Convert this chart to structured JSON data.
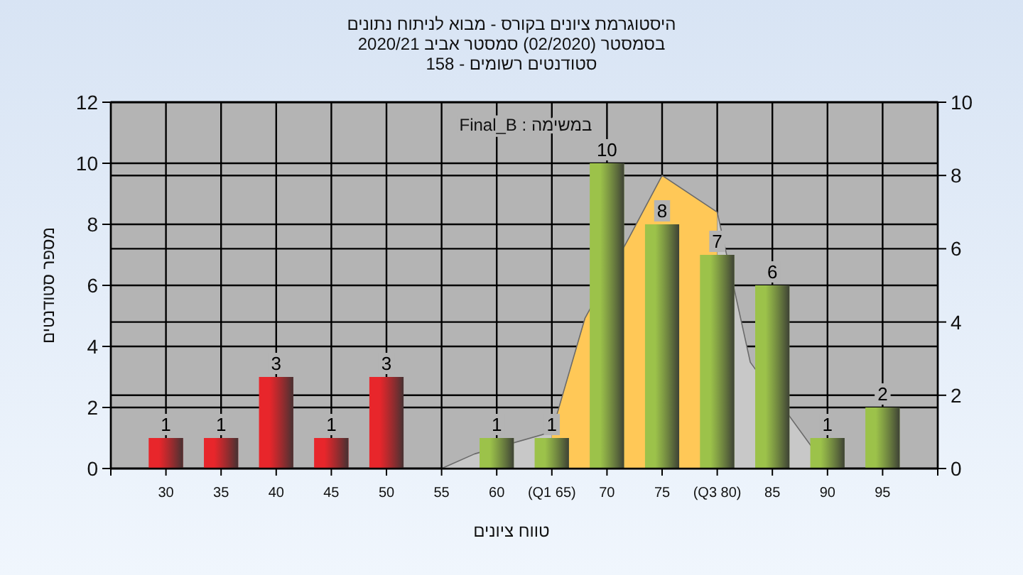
{
  "chart_data": {
    "type": "bar",
    "title": "היסטוגרמת ציונים בקורס - מבוא לניתוח נתונים",
    "subtitle": "בסמסטר  (02/2020)  סמסטר אביב 2020/21",
    "xlabel": "טווח ציונים",
    "ylabel": "מספר סטודנטים",
    "annotations": [
      "סטודנטים רשומים - 158",
      "במשימה : Final_B"
    ],
    "xlim": [
      25,
      100
    ],
    "xticks": [
      {
        "value": 25,
        "label": null
      },
      30,
      35,
      40,
      45,
      50,
      55,
      60,
      {
        "value": 65,
        "label": "(Q1 65)"
      },
      70,
      75,
      {
        "value": 80,
        "label": "(Q3 80)"
      },
      85,
      90,
      95,
      {
        "value": 100,
        "label": null
      }
    ],
    "ylim": [
      0,
      12
    ],
    "yticks": [
      0,
      2,
      4,
      6,
      8,
      10,
      12
    ],
    "y2lim": [
      0,
      10
    ],
    "y2ticks": [
      0,
      2,
      4,
      6,
      8,
      10
    ],
    "grid": true,
    "series": [
      {
        "type": "area",
        "axis": "y2",
        "color": "#c8c8c8",
        "x": [
          55,
          58,
          65
        ],
        "values": [
          0,
          0.4,
          1
        ]
      },
      {
        "type": "area",
        "axis": "y2",
        "color": "#ffc857",
        "x": [
          65,
          68,
          72,
          75,
          80
        ],
        "values": [
          1,
          4.1,
          6.3,
          8,
          7
        ]
      },
      {
        "type": "area",
        "axis": "y2",
        "color": "#c8c8c8",
        "x": [
          80,
          83,
          90
        ],
        "values": [
          7,
          2.9,
          0
        ]
      },
      {
        "x": [
          30,
          35,
          40,
          45,
          50,
          55,
          60,
          65,
          70,
          75,
          80,
          85,
          90,
          95
        ],
        "values": [
          1,
          1,
          3,
          1,
          3,
          null,
          1,
          1,
          10,
          8,
          7,
          6,
          1,
          2
        ],
        "colors": [
          "#e8262b",
          "#e8262b",
          "#e8262b",
          "#e8262b",
          "#e8262b",
          "#e8262b",
          "#9cc24a",
          "#9cc24a",
          "#9cc24a",
          "#9cc24a",
          "#9cc24a",
          "#9cc24a",
          "#9cc24a",
          "#9cc24a"
        ],
        "value_labels": [
          "1",
          "1",
          "3",
          "1",
          "3",
          null,
          "1",
          "1",
          "10",
          "8",
          "7",
          "6",
          "1",
          "2"
        ]
      }
    ]
  }
}
